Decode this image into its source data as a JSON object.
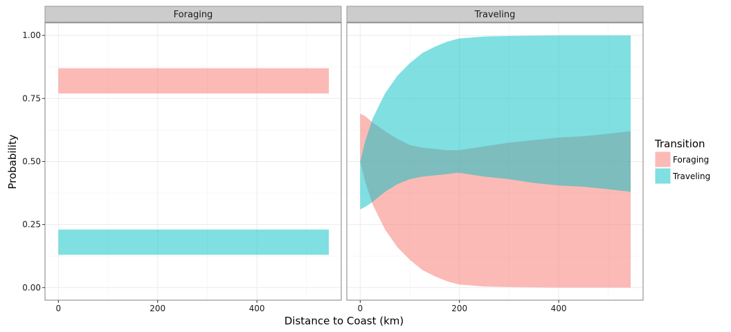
{
  "chart_data": {
    "type": "area",
    "facets": [
      "Foraging",
      "Traveling"
    ],
    "xlabel": "Distance to Coast (km)",
    "ylabel": "Probability",
    "xlim": [
      -27,
      570
    ],
    "ylim": [
      -0.05,
      1.05
    ],
    "x_ticks": [
      0,
      200,
      400
    ],
    "y_ticks": [
      0.0,
      0.25,
      0.5,
      0.75,
      1.0
    ],
    "y_tick_labels": [
      "0.00",
      "0.25",
      "0.50",
      "0.75",
      "1.00"
    ],
    "grid": true,
    "legend": {
      "title": "Transition",
      "position": "right",
      "entries": [
        {
          "label": "Foraging",
          "color": "#F8766D"
        },
        {
          "label": "Traveling",
          "color": "#00BFC4"
        }
      ]
    },
    "panels": [
      {
        "facet": "Foraging",
        "series": [
          {
            "name": "Foraging",
            "x": [
              0,
              545
            ],
            "lower": [
              0.77,
              0.77
            ],
            "upper": [
              0.87,
              0.87
            ]
          },
          {
            "name": "Traveling",
            "x": [
              0,
              545
            ],
            "lower": [
              0.13,
              0.13
            ],
            "upper": [
              0.23,
              0.23
            ]
          }
        ]
      },
      {
        "facet": "Traveling",
        "series": [
          {
            "name": "Foraging",
            "x": [
              0,
              10,
              25,
              50,
              75,
              100,
              125,
              150,
              175,
              195,
              200,
              250,
              300,
              350,
              400,
              450,
              500,
              545
            ],
            "lower": [
              0.5,
              0.42,
              0.33,
              0.23,
              0.16,
              0.11,
              0.07,
              0.045,
              0.025,
              0.014,
              0.012,
              0.004,
              0.002,
              0.001,
              0.0,
              0.0,
              0.0,
              0.0
            ],
            "upper": [
              0.69,
              0.68,
              0.655,
              0.62,
              0.59,
              0.565,
              0.555,
              0.55,
              0.545,
              0.545,
              0.545,
              0.56,
              0.575,
              0.585,
              0.595,
              0.6,
              0.61,
              0.62
            ]
          },
          {
            "name": "Traveling",
            "x": [
              0,
              10,
              25,
              50,
              75,
              100,
              125,
              150,
              175,
              195,
              200,
              250,
              300,
              350,
              400,
              450,
              500,
              545
            ],
            "lower": [
              0.31,
              0.32,
              0.34,
              0.38,
              0.41,
              0.43,
              0.44,
              0.445,
              0.45,
              0.455,
              0.455,
              0.44,
              0.43,
              0.415,
              0.405,
              0.4,
              0.39,
              0.38
            ],
            "upper": [
              0.5,
              0.58,
              0.67,
              0.77,
              0.84,
              0.89,
              0.93,
              0.955,
              0.975,
              0.986,
              0.988,
              0.996,
              0.998,
              0.999,
              1.0,
              1.0,
              1.0,
              1.0
            ]
          }
        ]
      }
    ]
  }
}
